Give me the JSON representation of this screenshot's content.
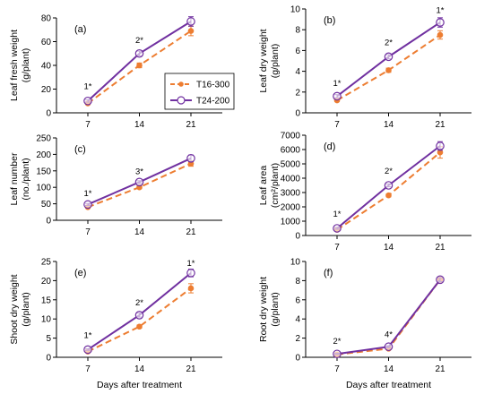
{
  "colors": {
    "t16": "#ED7D31",
    "t24": "#7030A0",
    "axis": "#000000"
  },
  "legend": {
    "t16": "T16-300",
    "t24": "T24-200"
  },
  "chart_data": [
    {
      "type": "line",
      "panel_label": "(a)",
      "ylabel": "Leaf fresh weight",
      "ylabel2": "(g/plant)",
      "xlabel": "",
      "x": [
        7,
        14,
        21
      ],
      "ylim": [
        0,
        80
      ],
      "yticks": [
        0,
        20,
        40,
        60,
        80
      ],
      "series": [
        {
          "name": "T16-300",
          "values": [
            8,
            40,
            69
          ],
          "err": [
            1,
            2,
            4
          ]
        },
        {
          "name": "T24-200",
          "values": [
            10,
            50,
            77
          ],
          "err": [
            1,
            2,
            4
          ]
        }
      ],
      "annotations": [
        {
          "x": 7,
          "y": 20,
          "text": "1*"
        },
        {
          "x": 14,
          "y": 59,
          "text": "2*"
        }
      ]
    },
    {
      "type": "line",
      "panel_label": "(b)",
      "ylabel": "Leaf dry weight",
      "ylabel2": "(g/plant)",
      "xlabel": "",
      "x": [
        7,
        14,
        21
      ],
      "ylim": [
        0,
        10
      ],
      "yticks": [
        0,
        2,
        4,
        6,
        8,
        10
      ],
      "series": [
        {
          "name": "T16-300",
          "values": [
            1.2,
            4.1,
            7.5
          ],
          "err": [
            0.1,
            0.2,
            0.4
          ]
        },
        {
          "name": "T24-200",
          "values": [
            1.6,
            5.4,
            8.7
          ],
          "err": [
            0.15,
            0.2,
            0.45
          ]
        }
      ],
      "annotations": [
        {
          "x": 7,
          "y": 2.6,
          "text": "1*"
        },
        {
          "x": 14,
          "y": 6.5,
          "text": "2*"
        },
        {
          "x": 21,
          "y": 9.6,
          "text": "1*"
        }
      ]
    },
    {
      "type": "line",
      "panel_label": "(c)",
      "ylabel": "Leaf number",
      "ylabel2": "(no./plant)",
      "xlabel": "",
      "x": [
        7,
        14,
        21
      ],
      "ylim": [
        0,
        250
      ],
      "yticks": [
        0,
        50,
        100,
        150,
        200,
        250
      ],
      "series": [
        {
          "name": "T16-300",
          "values": [
            40,
            100,
            172
          ],
          "err": [
            3,
            4,
            8
          ]
        },
        {
          "name": "T24-200",
          "values": [
            48,
            116,
            188
          ],
          "err": [
            3,
            4,
            10
          ]
        }
      ],
      "annotations": [
        {
          "x": 7,
          "y": 74,
          "text": "1*"
        },
        {
          "x": 14,
          "y": 140,
          "text": "3*"
        }
      ]
    },
    {
      "type": "line",
      "panel_label": "(d)",
      "ylabel": "Leaf area",
      "ylabel2": "(cm²/plant)",
      "xlabel": "",
      "x": [
        7,
        14,
        21
      ],
      "ylim": [
        0,
        7000
      ],
      "yticks": [
        0,
        1000,
        2000,
        3000,
        4000,
        5000,
        6000,
        7000
      ],
      "series": [
        {
          "name": "T16-300",
          "values": [
            400,
            2800,
            5800
          ],
          "err": [
            50,
            100,
            400
          ]
        },
        {
          "name": "T24-200",
          "values": [
            500,
            3500,
            6250
          ],
          "err": [
            60,
            100,
            300
          ]
        }
      ],
      "annotations": [
        {
          "x": 7,
          "y": 1300,
          "text": "1*"
        },
        {
          "x": 14,
          "y": 4300,
          "text": "2*"
        }
      ]
    },
    {
      "type": "line",
      "panel_label": "(e)",
      "ylabel": "Shoot dry weight",
      "ylabel2": "(g/plant)",
      "xlabel": "Days after treatment",
      "x": [
        7,
        14,
        21
      ],
      "ylim": [
        0,
        25
      ],
      "yticks": [
        0,
        5,
        10,
        15,
        20,
        25
      ],
      "series": [
        {
          "name": "T16-300",
          "values": [
            1.5,
            8,
            18
          ],
          "err": [
            0.2,
            0.4,
            1.2
          ]
        },
        {
          "name": "T24-200",
          "values": [
            2,
            11,
            22
          ],
          "err": [
            0.2,
            0.5,
            1.0
          ]
        }
      ],
      "annotations": [
        {
          "x": 7,
          "y": 5,
          "text": "1*"
        },
        {
          "x": 14,
          "y": 13.5,
          "text": "2*"
        },
        {
          "x": 21,
          "y": 23.8,
          "text": "1*"
        }
      ]
    },
    {
      "type": "line",
      "panel_label": "(f)",
      "ylabel": "Root dry weight",
      "ylabel2": "(g/plant)",
      "xlabel": "Days after treatment",
      "x": [
        7,
        14,
        21
      ],
      "ylim": [
        0,
        10
      ],
      "yticks": [
        0,
        2,
        4,
        6,
        8,
        10
      ],
      "series": [
        {
          "name": "T16-300",
          "values": [
            0.3,
            0.9,
            8.1
          ],
          "err": [
            0.05,
            0.1,
            0.2
          ]
        },
        {
          "name": "T24-200",
          "values": [
            0.35,
            1.1,
            8.1
          ],
          "err": [
            0.05,
            0.1,
            0.2
          ]
        }
      ],
      "annotations": [
        {
          "x": 7,
          "y": 1.4,
          "text": "2*"
        },
        {
          "x": 14,
          "y": 2.1,
          "text": "4*"
        }
      ]
    }
  ]
}
